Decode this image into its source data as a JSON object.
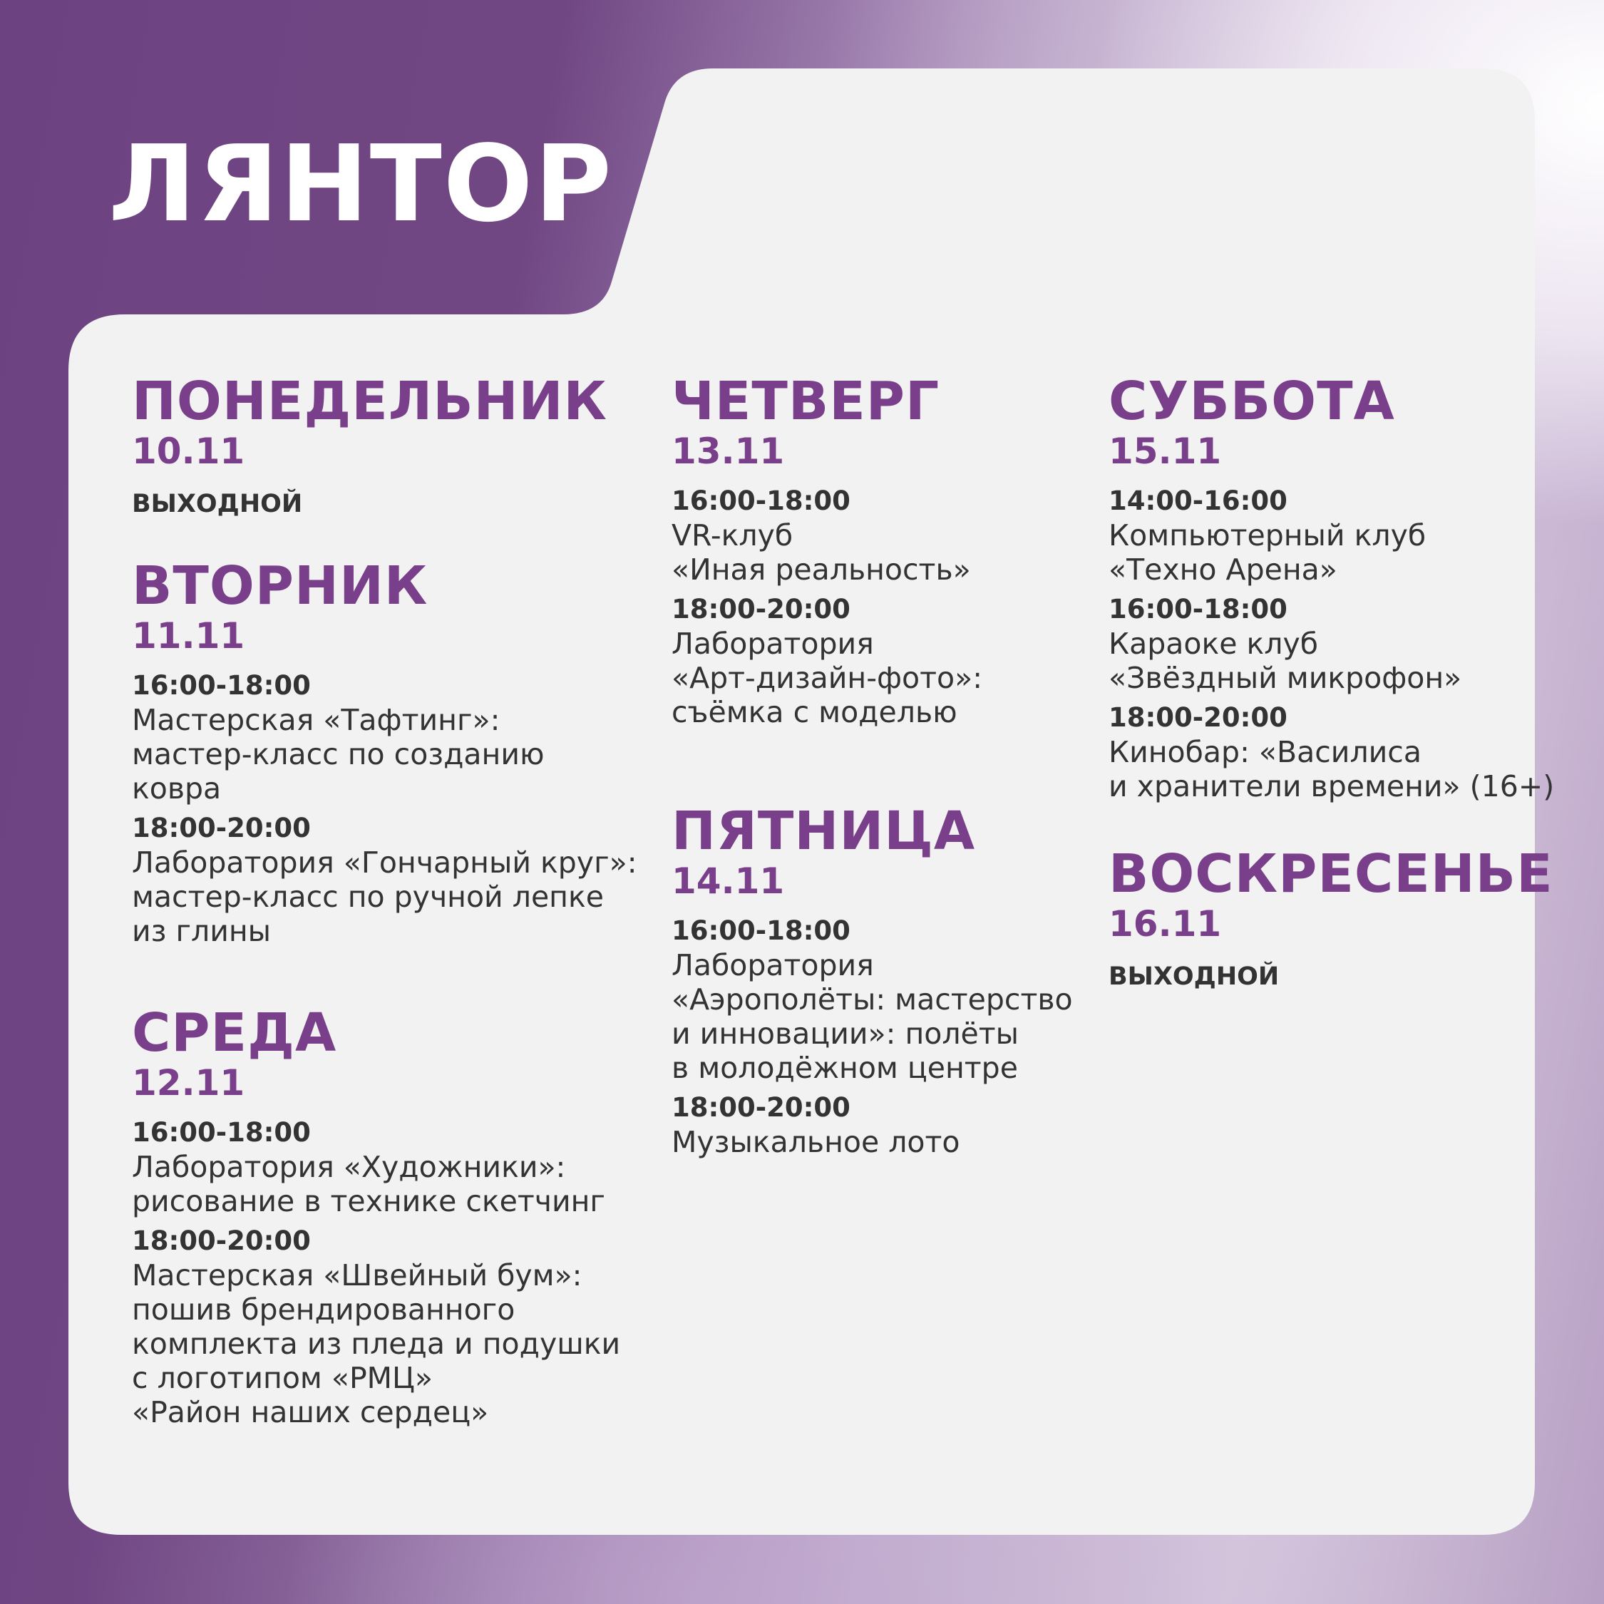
{
  "title": "ЛЯНТОР",
  "colors": {
    "accent": "#7a3f8a",
    "text": "#333333",
    "card": "#f2f2f2"
  },
  "days": {
    "mon": {
      "name": "ПОНЕДЕЛЬНИК",
      "date": "10.11",
      "off": "ВЫХОДНОЙ"
    },
    "tue": {
      "name": "ВТОРНИК",
      "date": "11.11",
      "events": [
        {
          "time": "16:00-18:00",
          "lines": [
            "Мастерская «Тафтинг»:",
            "мастер-класс по созданию",
            "ковра"
          ]
        },
        {
          "time": "18:00-20:00",
          "lines": [
            "Лаборатория «Гончарный круг»:",
            "мастер-класс по ручной лепке",
            "из глины"
          ]
        }
      ]
    },
    "wed": {
      "name": "СРЕДА",
      "date": "12.11",
      "events": [
        {
          "time": "16:00-18:00",
          "lines": [
            "Лаборатория «Художники»:",
            "рисование в технике скетчинг"
          ]
        },
        {
          "time": "18:00-20:00",
          "lines": [
            "Мастерская «Швейный бум»:",
            "пошив брендированного",
            "комплекта из пледа и подушки",
            "с логотипом «РМЦ»",
            "«Район наших сердец»"
          ]
        }
      ]
    },
    "thu": {
      "name": "ЧЕТВЕРГ",
      "date": "13.11",
      "events": [
        {
          "time": "16:00-18:00",
          "lines": [
            "VR-клуб",
            "«Иная реальность»"
          ]
        },
        {
          "time": "18:00-20:00",
          "lines": [
            "Лаборатория",
            "«Арт-дизайн-фото»:",
            "съёмка с моделью"
          ]
        }
      ]
    },
    "fri": {
      "name": "ПЯТНИЦА",
      "date": "14.11",
      "events": [
        {
          "time": "16:00-18:00",
          "lines": [
            "Лаборатория",
            "«Аэрополёты: мастерство",
            "и инновации»: полёты",
            "в молодёжном центре"
          ]
        },
        {
          "time": "18:00-20:00",
          "lines": [
            "Музыкальное лото"
          ]
        }
      ]
    },
    "sat": {
      "name": "СУББОТА",
      "date": "15.11",
      "events": [
        {
          "time": "14:00-16:00",
          "lines": [
            "Компьютерный клуб",
            "«Техно Арена»"
          ]
        },
        {
          "time": "16:00-18:00",
          "lines": [
            "Караоке клуб",
            "«Звёздный микрофон»"
          ]
        },
        {
          "time": "18:00-20:00",
          "lines": [
            "Кинобар: «Василиса",
            "и хранители времени» (16+)"
          ]
        }
      ]
    },
    "sun": {
      "name": "ВОСКРЕСЕНЬЕ",
      "date": "16.11",
      "off": "ВЫХОДНОЙ"
    }
  }
}
